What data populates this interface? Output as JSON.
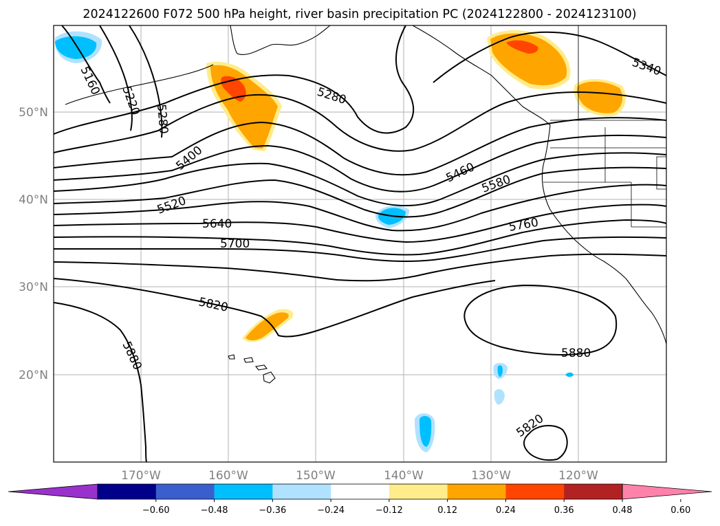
{
  "title": "2024122600 F072 500 hPa height, river basin precipitation PC (2024122800 - 2024123100)",
  "lat_labels": [
    "50°N",
    "40°N",
    "30°N",
    "20°N"
  ],
  "lon_labels": [
    "170°W",
    "160°W",
    "150°W",
    "140°W",
    "130°W",
    "120°W"
  ],
  "contour_labels": [
    "5160",
    "5220",
    "5280",
    "5280",
    "5340",
    "5400",
    "5460",
    "5520",
    "5580",
    "5640",
    "5700",
    "5760",
    "5820",
    "5820",
    "5880",
    "5880"
  ],
  "colorbar": {
    "ticks": [
      "−0.60",
      "−0.48",
      "−0.36",
      "−0.24",
      "−0.12",
      "0.12",
      "0.24",
      "0.36",
      "0.48",
      "0.60"
    ],
    "colors": [
      "#9932cc",
      "#00008b",
      "#3a5fcd",
      "#00bfff",
      "#b0e2ff",
      "#ffffff",
      "#ffec8b",
      "#ffa500",
      "#ff4500",
      "#b22222",
      "#ff82ab"
    ]
  },
  "colors": {
    "positive_low": "#ffec8b",
    "positive_mid": "#ffa500",
    "positive_high": "#ff4500",
    "negative_mid": "#00bfff",
    "negative_low": "#b0e2ff",
    "gridline": "#b0b0b0"
  }
}
